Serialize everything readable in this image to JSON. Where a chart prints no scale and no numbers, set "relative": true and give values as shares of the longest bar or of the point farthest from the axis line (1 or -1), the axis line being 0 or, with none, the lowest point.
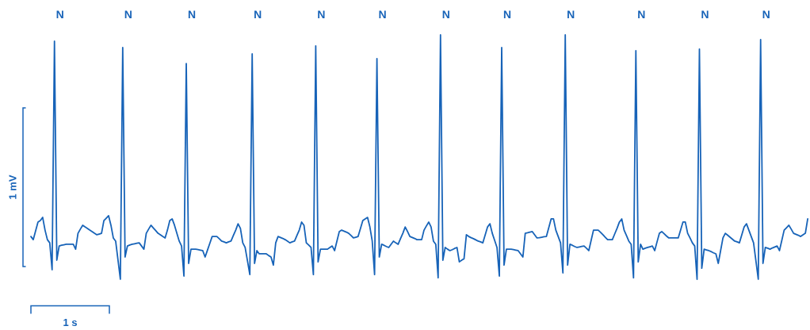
{
  "chart_data": {
    "type": "line",
    "relative": true,
    "xlabel": "1 s",
    "ylabel": "1 mV",
    "categories": [
      null,
      null,
      null,
      null,
      null,
      null,
      null,
      null,
      null,
      null,
      null,
      null,
      null,
      null,
      null,
      null,
      null,
      null,
      null,
      null,
      null,
      null,
      null,
      null,
      null,
      null,
      null,
      null,
      null,
      null,
      null,
      null,
      null,
      null,
      null,
      null,
      null,
      null,
      null,
      null,
      null,
      null,
      null,
      null,
      null,
      null,
      null,
      null,
      null,
      null,
      null,
      null,
      null,
      null,
      null,
      null,
      null,
      null,
      null,
      null,
      null,
      null,
      null,
      null,
      null,
      null,
      null,
      null,
      null,
      null,
      null,
      null,
      null,
      null,
      null,
      null,
      null,
      null,
      null,
      null,
      null,
      null,
      null,
      null,
      null,
      null,
      null,
      null,
      null,
      null,
      null,
      null,
      null,
      null,
      null,
      null,
      null,
      null,
      null,
      null,
      null,
      null,
      null,
      null,
      null,
      null,
      null,
      null,
      null,
      null,
      null,
      null,
      null,
      null,
      null,
      null,
      null,
      null,
      null,
      null,
      null,
      null,
      null,
      null,
      null,
      null,
      null,
      null,
      null,
      null,
      null,
      null,
      null,
      null,
      null,
      null,
      null,
      null,
      null,
      null,
      null,
      null,
      null,
      null,
      null,
      null,
      null,
      null,
      null,
      null,
      null,
      null,
      null,
      null,
      null,
      null,
      null,
      null,
      null,
      null,
      null,
      null,
      null,
      null,
      null,
      null,
      null,
      null,
      null,
      null,
      null,
      null,
      null,
      null,
      null,
      null,
      null,
      null,
      null,
      null,
      null,
      null,
      null,
      null,
      null,
      null,
      null,
      null,
      null,
      null,
      null,
      null,
      null,
      null,
      null,
      null,
      null,
      null,
      null,
      null,
      null,
      null,
      null,
      null,
      null,
      null,
      null,
      null,
      null,
      null,
      null,
      null,
      null,
      null,
      null,
      null,
      null,
      null,
      null,
      null,
      null,
      null,
      null,
      null,
      null,
      null,
      null,
      null,
      null,
      null,
      null,
      null,
      null,
      null,
      null,
      null,
      null,
      null,
      null,
      null,
      null,
      null,
      null,
      null,
      null,
      null,
      null,
      null,
      null,
      null,
      null,
      null,
      null,
      null,
      null,
      null,
      null,
      null,
      null,
      null,
      null,
      null,
      null,
      null,
      null,
      null,
      null,
      null,
      null,
      null,
      null,
      null,
      null,
      null,
      null,
      null,
      null,
      null,
      null,
      null,
      null,
      null,
      null,
      null,
      null,
      null,
      null,
      null,
      null,
      null,
      null,
      null,
      null,
      null,
      null,
      null,
      null,
      null,
      null,
      null,
      null,
      null,
      null,
      null,
      null,
      null,
      null,
      null,
      null,
      null,
      null,
      null,
      null,
      null,
      null,
      null,
      null,
      null,
      null,
      null,
      null,
      null,
      null,
      null,
      null,
      null,
      null,
      null,
      null,
      null,
      null
    ],
    "series": [
      {
        "color": "#1763b8",
        "values": [
          0.175,
          0.162,
          0.198,
          0.234,
          0.24,
          0.253,
          0.201,
          0.162,
          0.149,
          0.039,
          0.974,
          0.078,
          0.136,
          0.139,
          0.141,
          0.143,
          0.143,
          0.143,
          0.143,
          0.123,
          0.188,
          0.205,
          0.221,
          0.214,
          0.208,
          0.201,
          0.195,
          0.188,
          0.182,
          0.185,
          0.188,
          0.24,
          0.25,
          0.26,
          0.221,
          0.169,
          0.156,
          0.078,
          0,
          0.948,
          0.091,
          0.136,
          0.14,
          0.143,
          0.145,
          0.147,
          0.149,
          0.136,
          0.123,
          0.188,
          0.205,
          0.221,
          0.21,
          0.199,
          0.188,
          0.182,
          0.175,
          0.169,
          0.201,
          0.24,
          0.247,
          0.221,
          0.188,
          0.156,
          0.136,
          0.013,
          0.883,
          0.065,
          0.123,
          0.123,
          0.123,
          0.121,
          0.119,
          0.117,
          0.091,
          0.119,
          0.147,
          0.175,
          0.175,
          0.175,
          0.166,
          0.156,
          0.153,
          0.149,
          0.153,
          0.156,
          0.179,
          0.201,
          0.227,
          0.208,
          0.149,
          0.13,
          0.075,
          0.019,
          0.922,
          0.065,
          0.117,
          0.104,
          0.104,
          0.104,
          0.104,
          0.097,
          0.091,
          0.058,
          0.149,
          0.175,
          0.171,
          0.167,
          0.162,
          0.156,
          0.149,
          0.153,
          0.156,
          0.179,
          0.201,
          0.234,
          0.221,
          0.149,
          0.14,
          0.13,
          0.019,
          0.955,
          0.071,
          0.123,
          0.123,
          0.123,
          0.123,
          0.13,
          0.136,
          0.117,
          0.156,
          0.195,
          0.201,
          0.197,
          0.193,
          0.188,
          0.179,
          0.169,
          0.172,
          0.175,
          0.208,
          0.24,
          0.247,
          0.253,
          0.214,
          0.156,
          0.019,
          0.903,
          0.091,
          0.143,
          0.139,
          0.134,
          0.13,
          0.143,
          0.156,
          0.149,
          0.143,
          0.166,
          0.188,
          0.214,
          0.195,
          0.175,
          0.171,
          0.167,
          0.162,
          0.162,
          0.162,
          0.201,
          0.218,
          0.234,
          0.214,
          0.156,
          0.143,
          0.006,
          1,
          0.078,
          0.13,
          0.123,
          0.117,
          0.121,
          0.126,
          0.13,
          0.071,
          0.078,
          0.084,
          0.182,
          0.175,
          0.17,
          0.166,
          0.161,
          0.156,
          0.153,
          0.149,
          0.182,
          0.214,
          0.227,
          0.188,
          0.159,
          0.13,
          0.013,
          0.948,
          0.058,
          0.123,
          0.123,
          0.123,
          0.121,
          0.119,
          0.117,
          0.104,
          0.091,
          0.188,
          0.19,
          0.193,
          0.195,
          0.182,
          0.169,
          0.17,
          0.172,
          0.174,
          0.175,
          0.211,
          0.247,
          0.247,
          0.201,
          0.175,
          0.149,
          0.026,
          1,
          0.058,
          0.143,
          0.139,
          0.134,
          0.13,
          0.132,
          0.134,
          0.136,
          0.127,
          0.117,
          0.159,
          0.201,
          0.201,
          0.201,
          0.192,
          0.182,
          0.172,
          0.162,
          0.162,
          0.162,
          0.185,
          0.208,
          0.234,
          0.247,
          0.201,
          0.179,
          0.156,
          0.143,
          0.006,
          0.935,
          0.071,
          0.143,
          0.123,
          0.127,
          0.13,
          0.133,
          0.136,
          0.117,
          0.153,
          0.188,
          0.195,
          0.186,
          0.177,
          0.169,
          0.169,
          0.169,
          0.169,
          0.169,
          0.201,
          0.234,
          0.234,
          0.188,
          0.169,
          0.149,
          0.136,
          0,
          0.942,
          0.045,
          0.123,
          0.12,
          0.117,
          0.113,
          0.108,
          0.104,
          0.065,
          0.117,
          0.169,
          0.188,
          0.18,
          0.172,
          0.164,
          0.156,
          0.153,
          0.149,
          0.182,
          0.214,
          0.227,
          0.201,
          0.175,
          0.149,
          0.075,
          0,
          0.981,
          0.065,
          0.13,
          0.127,
          0.123,
          0.128,
          0.132,
          0.136,
          0.117,
          0.159,
          0.201,
          0.211,
          0.221,
          0.205,
          0.188,
          0.184,
          0.18,
          0.175,
          0.182,
          0.188,
          0.247
        ]
      }
    ],
    "annotations": [
      "N",
      "N",
      "N",
      "N",
      "N",
      "N",
      "N",
      "N",
      "N",
      "N",
      "N",
      "N"
    ]
  }
}
